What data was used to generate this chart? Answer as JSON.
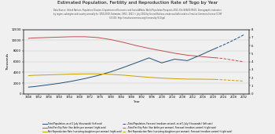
{
  "title": "Estimated Population, Fertility and Reproduction Rate of Togo by Year",
  "subtitle_line1": "Data Source: United Nations, Population Division, Department of Economic and Social Affairs, World Population Prospects 2022, File GEN/05/REV1. Demographic indicators",
  "subtitle_line2": "by region, subregion and country annually for 1950-2100. Estimates, 1950 - 2021 © July 2022 by United Nations, made available under a Creative Commons license CC BY",
  "subtitle_line3": "3.0 IGO: http://creativecommons.org/licenses/by/3.0/igo/",
  "xlabel": "Year",
  "ylabel_left": "Thousands",
  "left_ylim": [
    0,
    12000
  ],
  "right_ylim": [
    0,
    8
  ],
  "left_yticks": [
    0,
    2000,
    4000,
    6000,
    8000,
    10000,
    12000
  ],
  "right_yticks": [
    0,
    1,
    2,
    3,
    4,
    5,
    6,
    7,
    8
  ],
  "pop_hist_x": [
    1948,
    1950,
    1955,
    1960,
    1965,
    1970,
    1975,
    1980,
    1985,
    1990,
    1995,
    2000,
    2005,
    2010,
    2015,
    2020,
    2021
  ],
  "pop_hist_y": [
    1247,
    1329,
    1638,
    1956,
    2359,
    2839,
    3404,
    4086,
    4911,
    5792,
    6697,
    5765,
    6460,
    6191,
    7200,
    8279,
    8478
  ],
  "tfr_hist_x": [
    1948,
    1950,
    1955,
    1960,
    1965,
    1970,
    1975,
    1980,
    1985,
    1990,
    1995,
    2000,
    2005,
    2010,
    2015,
    2020,
    2021
  ],
  "tfr_hist_y": [
    6.9,
    6.95,
    7.0,
    7.05,
    7.1,
    7.1,
    7.0,
    6.75,
    6.4,
    6.0,
    5.65,
    5.35,
    5.05,
    4.8,
    4.65,
    4.5,
    4.48
  ],
  "nrr_hist_x": [
    1948,
    1950,
    1955,
    1960,
    1965,
    1970,
    1975,
    1980,
    1985,
    1990,
    1995,
    2000,
    2005,
    2010,
    2015,
    2020,
    2021
  ],
  "nrr_hist_y": [
    2.25,
    2.3,
    2.35,
    2.4,
    2.45,
    2.48,
    2.48,
    2.42,
    2.32,
    2.18,
    2.05,
    1.95,
    1.88,
    1.83,
    1.82,
    1.8,
    1.79
  ],
  "pop_fore_x": [
    2021,
    2022,
    2024,
    2026,
    2028,
    2030,
    2032
  ],
  "pop_fore_y": [
    8478,
    8700,
    9100,
    9550,
    10000,
    10500,
    11000
  ],
  "tfr_fore_x": [
    2021,
    2022,
    2024,
    2026,
    2028,
    2030,
    2032
  ],
  "tfr_fore_y": [
    4.48,
    4.45,
    4.38,
    4.28,
    4.18,
    4.08,
    3.98
  ],
  "nrr_fore_x": [
    2021,
    2022,
    2024,
    2026,
    2028,
    2030,
    2032
  ],
  "nrr_fore_y": [
    1.79,
    1.77,
    1.74,
    1.7,
    1.66,
    1.62,
    1.58
  ],
  "color_pop": "#1f4e79",
  "color_tfr": "#c0504d",
  "color_nrr": "#c6a000",
  "bg_color": "#f0f0f0",
  "xtick_vals": [
    1948,
    1952,
    1956,
    1960,
    1964,
    1968,
    1972,
    1976,
    1980,
    1984,
    1988,
    1992,
    1996,
    2000,
    2004,
    2008,
    2012,
    2016,
    2020,
    2024,
    2028,
    2032
  ],
  "legend_entries_left": [
    "Total Population, as of 1 July (thousands) (left axis)",
    "Total Fertility Rate (live births per woman) (right axis)",
    "Net Reproduction Rate (surviving daughters per woman) (right axis)"
  ],
  "legend_entries_right": [
    "Total Population, Forecast (medium variant), as of 1 July (thousands) (left axis)",
    "Total Fertility Rate (live births per woman), Forecast (medium variant) (right axis)",
    "Net Reproduction Rate (surviving daughters per woman), Forecast (medium variant) (right axis)"
  ]
}
